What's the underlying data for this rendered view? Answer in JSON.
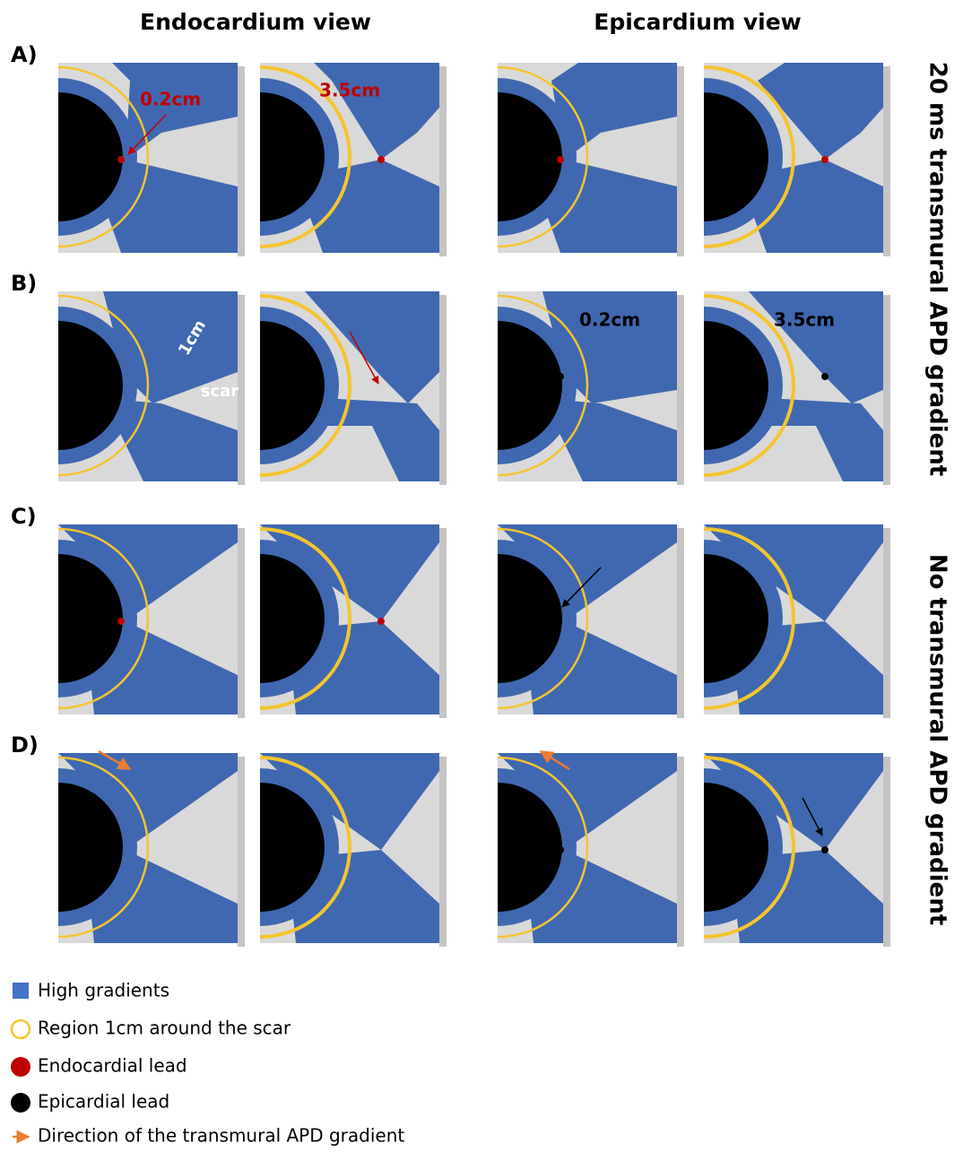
{
  "columns": [
    "Endocardium view",
    "Epicardium view"
  ],
  "rows": [
    "A)",
    "B)",
    "C)",
    "D)"
  ],
  "side_labels": [
    "20 ms transmural APD gradient",
    "No transmural APD gradient"
  ],
  "annotations": [
    "0.2cm",
    "3.5cm",
    "1cm",
    "scar",
    "0.2cm",
    "3.5cm"
  ],
  "legend": [
    "High gradients",
    "Region 1cm around the scar",
    "Endocardial lead",
    "Epicardial lead",
    "Direction of the transmural APD gradient"
  ]
}
